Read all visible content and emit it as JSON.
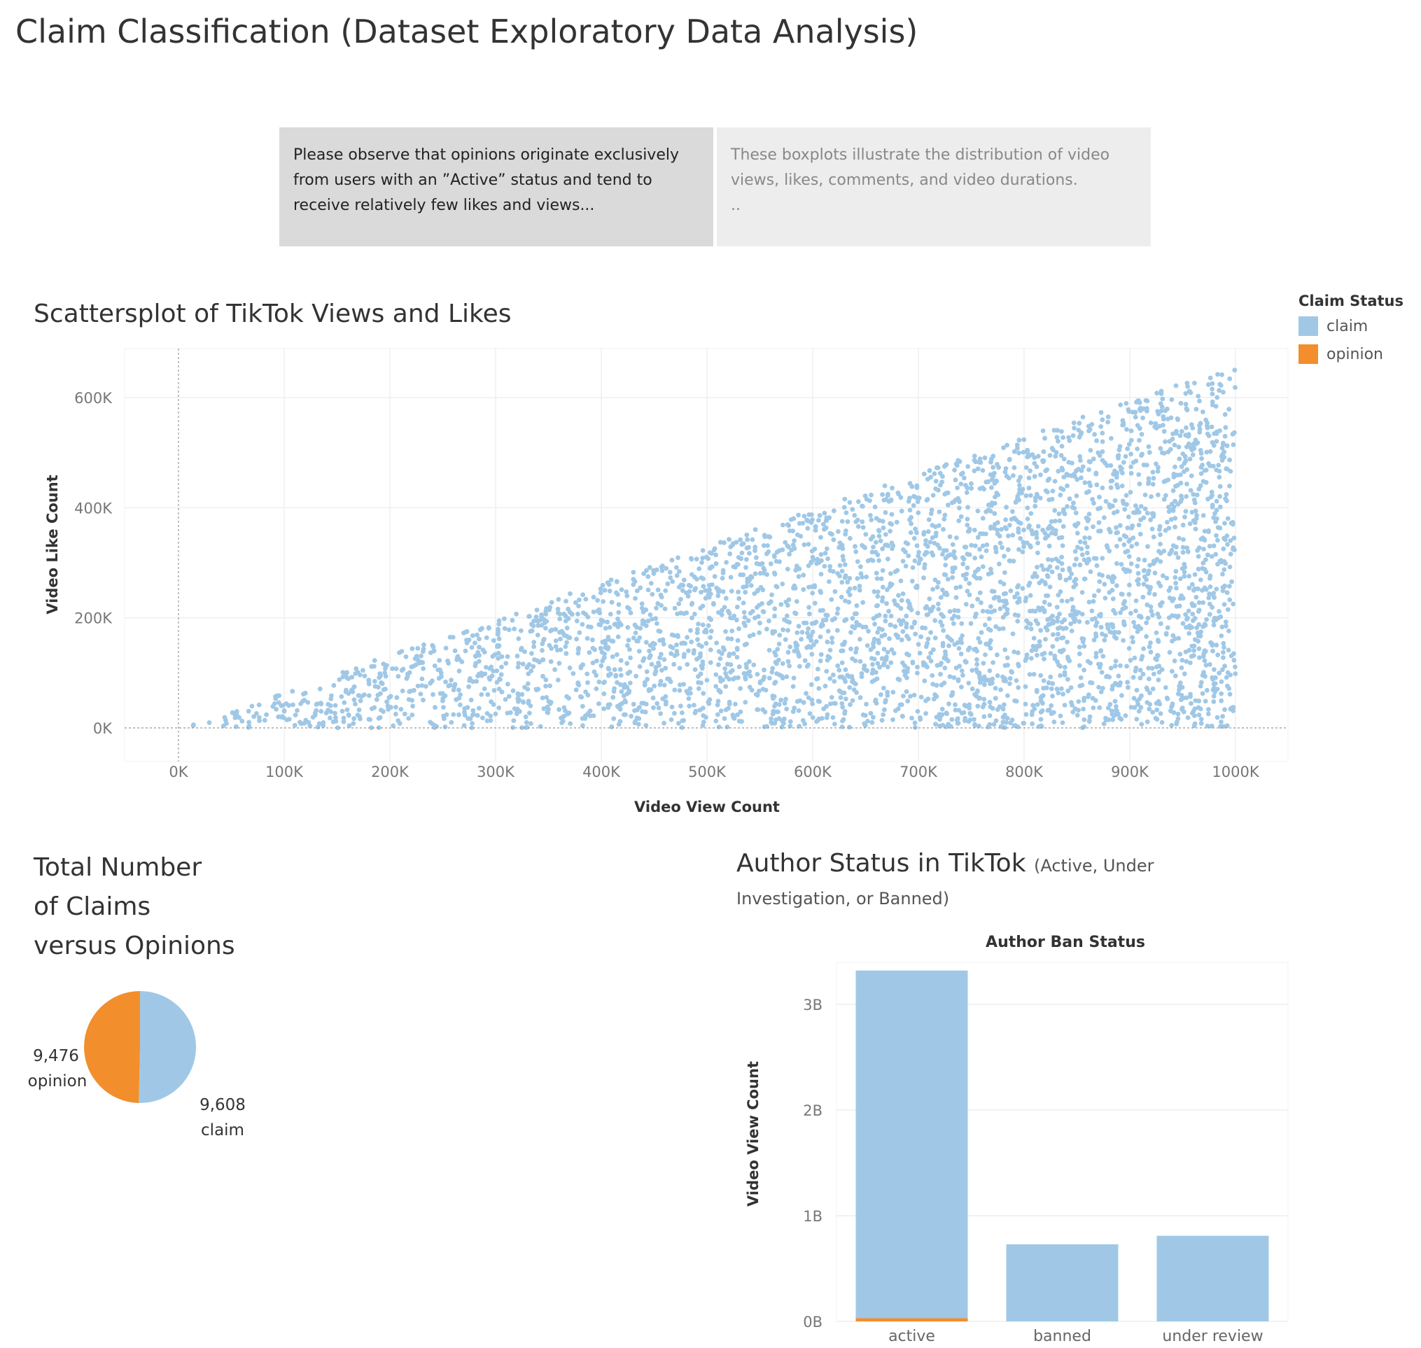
{
  "title": "Claim Classification (Dataset Exploratory Data Analysis)",
  "notes": {
    "left": [
      "Please observe that  opinions originate exclusively",
      "from users with an ”Active” status and tend to",
      "receive relatively few likes and views..."
    ],
    "right": [
      "These boxplots illustrate the distribution of video",
      "views, likes, comments, and video durations.",
      ".."
    ]
  },
  "legend": {
    "title": "Claim Status",
    "items": [
      {
        "label": "claim",
        "color": "#a0c8e6"
      },
      {
        "label": "opinion",
        "color": "#f28e2c"
      }
    ]
  },
  "chart_data": [
    {
      "type": "scatter",
      "title": "Scattersplot of TikTok Views and Likes",
      "xlabel": "Video View Count",
      "ylabel": "Video Like Count",
      "xlim": [
        0,
        1000000
      ],
      "ylim": [
        0,
        660000
      ],
      "x_ticks": [
        "0K",
        "100K",
        "200K",
        "300K",
        "400K",
        "500K",
        "600K",
        "700K",
        "800K",
        "900K",
        "1000K"
      ],
      "y_ticks": [
        "0K",
        "200K",
        "400K",
        "600K"
      ],
      "series": [
        {
          "name": "claim",
          "color": "#a0c8e6"
        }
      ],
      "pattern": "likes uniformly distributed between 0 and about 0.66 × views; views up to 1000K"
    },
    {
      "type": "pie",
      "title": "Total Number of Claims versus Opinions",
      "title_lines": [
        "Total Number",
        "of Claims",
        "versus Opinions"
      ],
      "slices": [
        {
          "label": "claim",
          "value": 9608,
          "value_label": "9,608",
          "color": "#a0c8e6"
        },
        {
          "label": "opinion",
          "value": 9476,
          "value_label": "9,476",
          "color": "#f28e2c"
        }
      ]
    },
    {
      "type": "bar",
      "title": "Author Status in TikTok",
      "subtitle": "(Active, Under Investigation, or Banned)",
      "column_header": "Author Ban Status",
      "ylabel": "Video View Count",
      "ylim": [
        0,
        3500000000
      ],
      "y_ticks": [
        "0B",
        "1B",
        "2B",
        "3B"
      ],
      "categories": [
        "active",
        "banned",
        "under review"
      ],
      "series": [
        {
          "name": "claim",
          "color": "#a0c8e6",
          "values": [
            3290000000,
            730000000,
            810000000
          ]
        },
        {
          "name": "opinion",
          "color": "#f28e2c",
          "values": [
            30000000,
            0,
            0
          ]
        }
      ]
    }
  ]
}
